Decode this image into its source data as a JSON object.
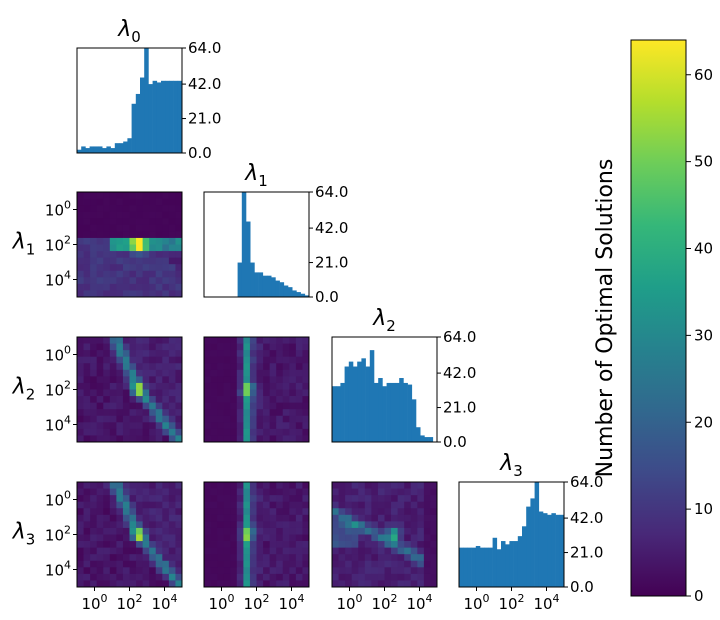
{
  "chart_data": {
    "type": "heatmap",
    "layout": "corner-plot",
    "parameters": [
      {
        "id": "l0",
        "symbol": "λ",
        "sub": "0"
      },
      {
        "id": "l1",
        "symbol": "λ",
        "sub": "1"
      },
      {
        "id": "l2",
        "symbol": "λ",
        "sub": "2"
      },
      {
        "id": "l3",
        "symbol": "λ",
        "sub": "3"
      }
    ],
    "axis_scale": "log10",
    "axis_range_exponent": [
      -1,
      5
    ],
    "axis_ticks_exponent": [
      0,
      2,
      4
    ],
    "histogram_ylim": [
      0,
      64
    ],
    "histogram_ticks": [
      "0.0",
      "21.0",
      "42.0",
      "64.0"
    ],
    "colorbar": {
      "label": "Number of Optimal Solutions",
      "colormap": "viridis",
      "range": [
        0,
        64
      ],
      "ticks": [
        0,
        10,
        20,
        30,
        40,
        50,
        60
      ]
    },
    "histograms": {
      "l0": [
        2,
        4,
        3,
        4,
        4,
        4,
        3,
        4,
        3,
        6,
        6,
        7,
        9,
        30,
        36,
        46,
        64,
        42,
        44,
        43,
        44,
        44,
        44,
        44,
        44
      ],
      "l1": [
        0,
        0,
        0,
        0,
        0,
        0,
        0,
        0,
        21,
        64,
        46,
        21,
        15,
        15,
        13,
        13,
        12,
        10,
        9,
        7,
        6,
        4,
        3,
        2,
        1
      ],
      "l2": [
        34,
        34,
        36,
        46,
        49,
        46,
        49,
        51,
        46,
        56,
        36,
        39,
        34,
        36,
        36,
        36,
        39,
        36,
        35,
        26,
        9,
        4,
        3,
        3,
        0
      ],
      "l3": [
        24,
        24,
        24,
        24,
        25,
        24,
        24,
        24,
        30,
        23,
        28,
        26,
        28,
        28,
        31,
        37,
        49,
        54,
        64,
        46,
        45,
        44,
        45,
        44,
        44
      ]
    },
    "pair_plots": [
      {
        "row": "l1",
        "col": "l0",
        "mode": "diagonal",
        "peak": [
          2.5,
          2
        ],
        "cutoff": 1.5,
        "band_start": 1
      },
      {
        "row": "l2",
        "col": "l0",
        "mode": "curve",
        "peak": [
          2.5,
          2
        ]
      },
      {
        "row": "l2",
        "col": "l1",
        "mode": "vertical",
        "peak": [
          1.5,
          2
        ]
      },
      {
        "row": "l3",
        "col": "l0",
        "mode": "curve",
        "peak": [
          2.5,
          2
        ]
      },
      {
        "row": "l3",
        "col": "l1",
        "mode": "vertical",
        "peak": [
          1.5,
          2
        ]
      },
      {
        "row": "l3",
        "col": "l2",
        "mode": "cross",
        "peak": [
          2.5,
          2
        ]
      }
    ]
  }
}
